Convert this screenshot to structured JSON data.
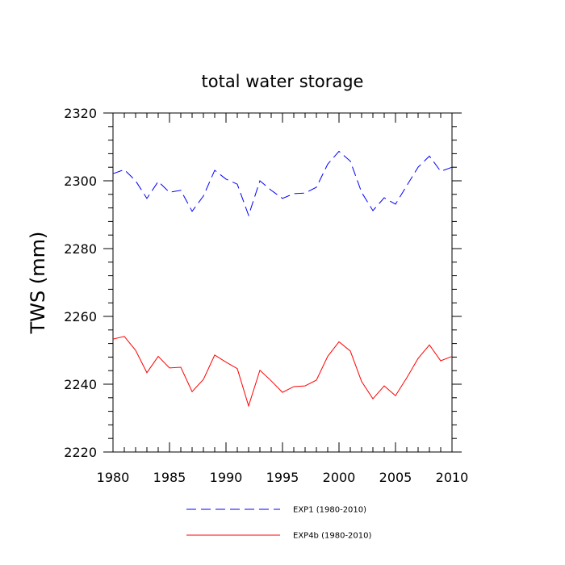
{
  "chart_data": {
    "type": "line",
    "title": "total water storage",
    "xlabel": "",
    "ylabel": "TWS  (mm)",
    "xlim": [
      1980,
      2010
    ],
    "ylim": [
      2220,
      2320
    ],
    "x_ticks": [
      1980,
      1985,
      1990,
      1995,
      2000,
      2005,
      2010
    ],
    "y_ticks": [
      2220,
      2240,
      2260,
      2280,
      2300,
      2320
    ],
    "x_tick_labels": [
      "1980",
      "1985",
      "1990",
      "1995",
      "2000",
      "2005",
      "2010"
    ],
    "y_tick_labels": [
      "2220",
      "2240",
      "2260",
      "2280",
      "2300",
      "2320"
    ],
    "x": [
      1980,
      1981,
      1982,
      1983,
      1984,
      1985,
      1986,
      1987,
      1988,
      1989,
      1990,
      1991,
      1992,
      1993,
      1994,
      1995,
      1996,
      1997,
      1998,
      1999,
      2000,
      2001,
      2002,
      2003,
      2004,
      2005,
      2006,
      2007,
      2008,
      2009,
      2010
    ],
    "series": [
      {
        "name": "EXP1 (1980-2010)",
        "color": "#0000ff",
        "dash": "dashed",
        "values": [
          2302.1,
          2303.3,
          2300.0,
          2294.8,
          2299.8,
          2296.6,
          2297.2,
          2291.0,
          2295.5,
          2303.1,
          2300.5,
          2299.0,
          2289.8,
          2300.0,
          2297.2,
          2294.8,
          2296.2,
          2296.4,
          2298.1,
          2304.9,
          2308.7,
          2305.8,
          2296.6,
          2291.2,
          2295.0,
          2293.1,
          2298.6,
          2304.0,
          2307.3,
          2302.8,
          2304.0
        ]
      },
      {
        "name": "EXP4b (1980-2010)",
        "color": "#ff0000",
        "dash": "solid",
        "values": [
          2253.3,
          2254.1,
          2250.0,
          2243.4,
          2248.2,
          2244.8,
          2245.0,
          2237.8,
          2241.4,
          2248.6,
          2246.5,
          2244.6,
          2233.6,
          2244.1,
          2241.0,
          2237.6,
          2239.3,
          2239.5,
          2241.2,
          2248.2,
          2252.5,
          2249.8,
          2240.8,
          2235.7,
          2239.5,
          2236.6,
          2241.9,
          2247.6,
          2251.6,
          2246.9,
          2248.2
        ]
      }
    ],
    "grid": false,
    "legend_position": "bottom"
  }
}
